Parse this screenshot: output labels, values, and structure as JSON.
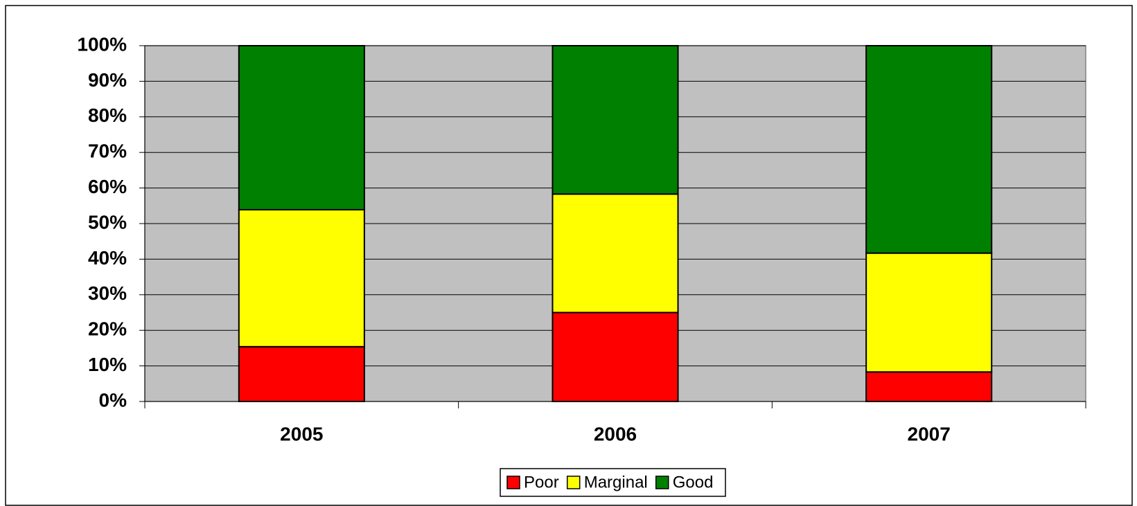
{
  "chart_data": {
    "type": "stacked_bar",
    "categories": [
      "2005",
      "2006",
      "2007"
    ],
    "series": [
      {
        "name": "Poor",
        "color": "#ff0000",
        "values": [
          15.4,
          25,
          8.3
        ]
      },
      {
        "name": "Marginal",
        "color": "#ffff00",
        "values": [
          38.5,
          33.3,
          33.4
        ]
      },
      {
        "name": "Good",
        "color": "#008000",
        "values": [
          46.1,
          41.7,
          58.3
        ]
      }
    ],
    "ylim": [
      0,
      100
    ],
    "yticks": [
      {
        "value": 0,
        "label": "0%"
      },
      {
        "value": 10,
        "label": "10%"
      },
      {
        "value": 20,
        "label": "20%"
      },
      {
        "value": 30,
        "label": "30%"
      },
      {
        "value": 40,
        "label": "40%"
      },
      {
        "value": 50,
        "label": "50%"
      },
      {
        "value": 60,
        "label": "60%"
      },
      {
        "value": 70,
        "label": "70%"
      },
      {
        "value": 80,
        "label": "80%"
      },
      {
        "value": 90,
        "label": "90%"
      },
      {
        "value": 100,
        "label": "100%"
      }
    ],
    "grid": true,
    "plot_background": "#c0c0c0",
    "legend": "bottom"
  }
}
